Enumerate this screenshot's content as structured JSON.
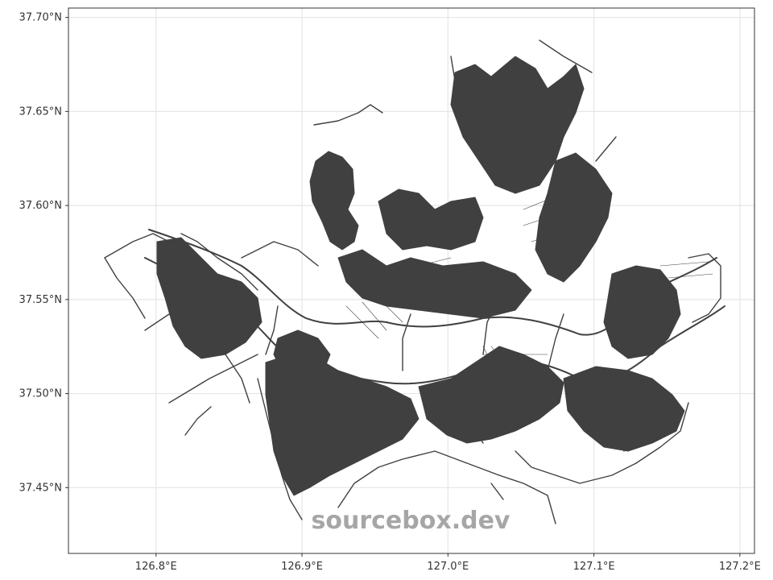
{
  "map": {
    "lon_range": [
      126.74,
      127.21
    ],
    "lat_range": [
      37.415,
      37.705
    ],
    "x_ticks": [
      {
        "value": 126.8,
        "label": "126.8°E"
      },
      {
        "value": 126.9,
        "label": "126.9°E"
      },
      {
        "value": 127.0,
        "label": "127.0°E"
      },
      {
        "value": 127.1,
        "label": "127.1°E"
      },
      {
        "value": 127.2,
        "label": "127.2°E"
      }
    ],
    "y_ticks": [
      {
        "value": 37.45,
        "label": "37.45°N"
      },
      {
        "value": 37.5,
        "label": "37.50°N"
      },
      {
        "value": 37.55,
        "label": "37.55°N"
      },
      {
        "value": 37.6,
        "label": "37.60°N"
      },
      {
        "value": 37.65,
        "label": "37.65°N"
      },
      {
        "value": 37.7,
        "label": "37.70°N"
      }
    ],
    "grid": true,
    "road_color": "#404040",
    "grid_color": "#e6e6e6"
  },
  "watermark": {
    "text": "sourcebox.dev",
    "color": "#a6a6a6"
  }
}
